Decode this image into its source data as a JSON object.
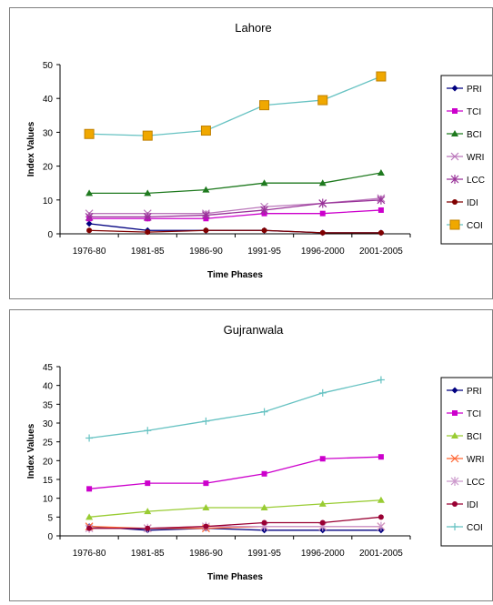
{
  "chart_data": [
    {
      "type": "line",
      "title": "Lahore",
      "xlabel": "Time Phases",
      "ylabel": "Index Values",
      "categories": [
        "1976-80",
        "1981-85",
        "1986-90",
        "1991-95",
        "1996-2000",
        "2001-2005"
      ],
      "ylim": [
        0,
        50
      ],
      "yticks": [
        0,
        10,
        20,
        30,
        40,
        50
      ],
      "grid": false,
      "legend": "right",
      "series": [
        {
          "name": "PRI",
          "color": "#000080",
          "marker": "diamond",
          "values": [
            3,
            1,
            1,
            1,
            0.3,
            0.3
          ]
        },
        {
          "name": "TCI",
          "color": "#cc00cc",
          "marker": "square",
          "values": [
            4.5,
            4.5,
            4.5,
            6,
            6,
            7
          ]
        },
        {
          "name": "BCI",
          "color": "#1f7a1f",
          "marker": "triangle",
          "values": [
            12,
            12,
            13,
            15,
            15,
            18
          ]
        },
        {
          "name": "WRI",
          "color": "#bb77bb",
          "marker": "x",
          "values": [
            6,
            6,
            6,
            8,
            9,
            10.5
          ]
        },
        {
          "name": "LCC",
          "color": "#993399",
          "marker": "star",
          "values": [
            5,
            5,
            5.5,
            7,
            9,
            10
          ]
        },
        {
          "name": "IDI",
          "color": "#800000",
          "marker": "circle",
          "values": [
            1,
            0.5,
            1,
            1,
            0.3,
            0.3
          ]
        },
        {
          "name": "COI",
          "color": "#66c2c2",
          "marker": "bigsquare",
          "markerColor": "#f0a800",
          "values": [
            29.5,
            29,
            30.5,
            38,
            39.5,
            46.5
          ]
        }
      ]
    },
    {
      "type": "line",
      "title": "Gujranwala",
      "xlabel": "Time Phases",
      "ylabel": "Index Values",
      "categories": [
        "1976-80",
        "1981-85",
        "1986-90",
        "1991-95",
        "1996-2000",
        "2001-2005"
      ],
      "ylim": [
        0,
        45
      ],
      "yticks": [
        0,
        5,
        10,
        15,
        20,
        25,
        30,
        35,
        40,
        45
      ],
      "grid": false,
      "legend": "right",
      "series": [
        {
          "name": "PRI",
          "color": "#000080",
          "marker": "diamond",
          "values": [
            2.5,
            1.5,
            2,
            1.5,
            1.5,
            1.5
          ]
        },
        {
          "name": "TCI",
          "color": "#cc00cc",
          "marker": "square",
          "values": [
            12.5,
            14,
            14,
            16.5,
            20.5,
            21
          ]
        },
        {
          "name": "BCI",
          "color": "#99cc33",
          "marker": "triangle",
          "values": [
            5,
            6.5,
            7.5,
            7.5,
            8.5,
            9.5
          ]
        },
        {
          "name": "WRI",
          "color": "#ff6633",
          "marker": "x",
          "values": [
            2.5,
            2,
            2,
            2.5,
            2.5,
            2.5
          ]
        },
        {
          "name": "LCC",
          "color": "#cc99cc",
          "marker": "star",
          "values": [
            2,
            2,
            2.5,
            2.5,
            2.5,
            2.5
          ]
        },
        {
          "name": "IDI",
          "color": "#990033",
          "marker": "circle",
          "values": [
            2,
            2,
            2.5,
            3.5,
            3.5,
            5
          ]
        },
        {
          "name": "COI",
          "color": "#66c2c2",
          "marker": "plus",
          "values": [
            26,
            28,
            30.5,
            33,
            38,
            41.5
          ]
        }
      ]
    }
  ]
}
